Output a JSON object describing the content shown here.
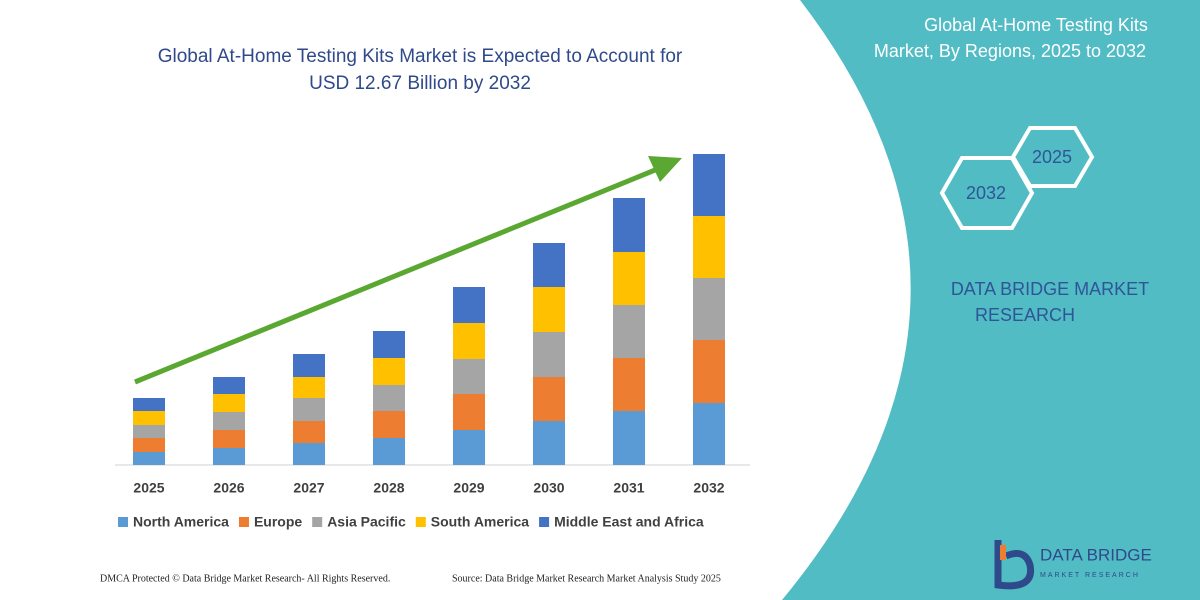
{
  "chart_data": {
    "type": "stacked_bar",
    "title": "Global At-Home Testing Kits Market is Expected to Account for USD 12.67 Billion by 2032",
    "categories": [
      "2025",
      "2026",
      "2027",
      "2028",
      "2029",
      "2030",
      "2031",
      "2032"
    ],
    "series": [
      {
        "name": "North America",
        "color": "#5b9bd5",
        "values": [
          13,
          17,
          22,
          27,
          35,
          44,
          54,
          62
        ]
      },
      {
        "name": "Europe",
        "color": "#ed7d31",
        "values": [
          14,
          18,
          22,
          27,
          36,
          44,
          53,
          63
        ]
      },
      {
        "name": "Asia Pacific",
        "color": "#a5a5a5",
        "values": [
          13,
          18,
          23,
          26,
          35,
          45,
          53,
          62
        ]
      },
      {
        "name": "South America",
        "color": "#ffc000",
        "values": [
          14,
          18,
          21,
          27,
          36,
          45,
          53,
          62
        ]
      },
      {
        "name": "Middle East and Africa",
        "color": "#4472c4",
        "values": [
          13,
          17,
          23,
          27,
          36,
          44,
          54,
          62
        ]
      }
    ]
  },
  "panel": {
    "title": "Global At-Home Testing Kits Market, By Regions, 2025 to 2032",
    "hex_start": "2025",
    "hex_end": "2032",
    "brand": "DATA BRIDGE MARKET RESEARCH"
  },
  "footer": {
    "left": "DMCA Protected © Data Bridge Market Research-  All Rights Reserved.",
    "right": "Source: Data Bridge Market Research  Market Analysis Study 2025"
  },
  "logo": {
    "name": "DATA BRIDGE",
    "tagline": "MARKET RESEARCH"
  }
}
